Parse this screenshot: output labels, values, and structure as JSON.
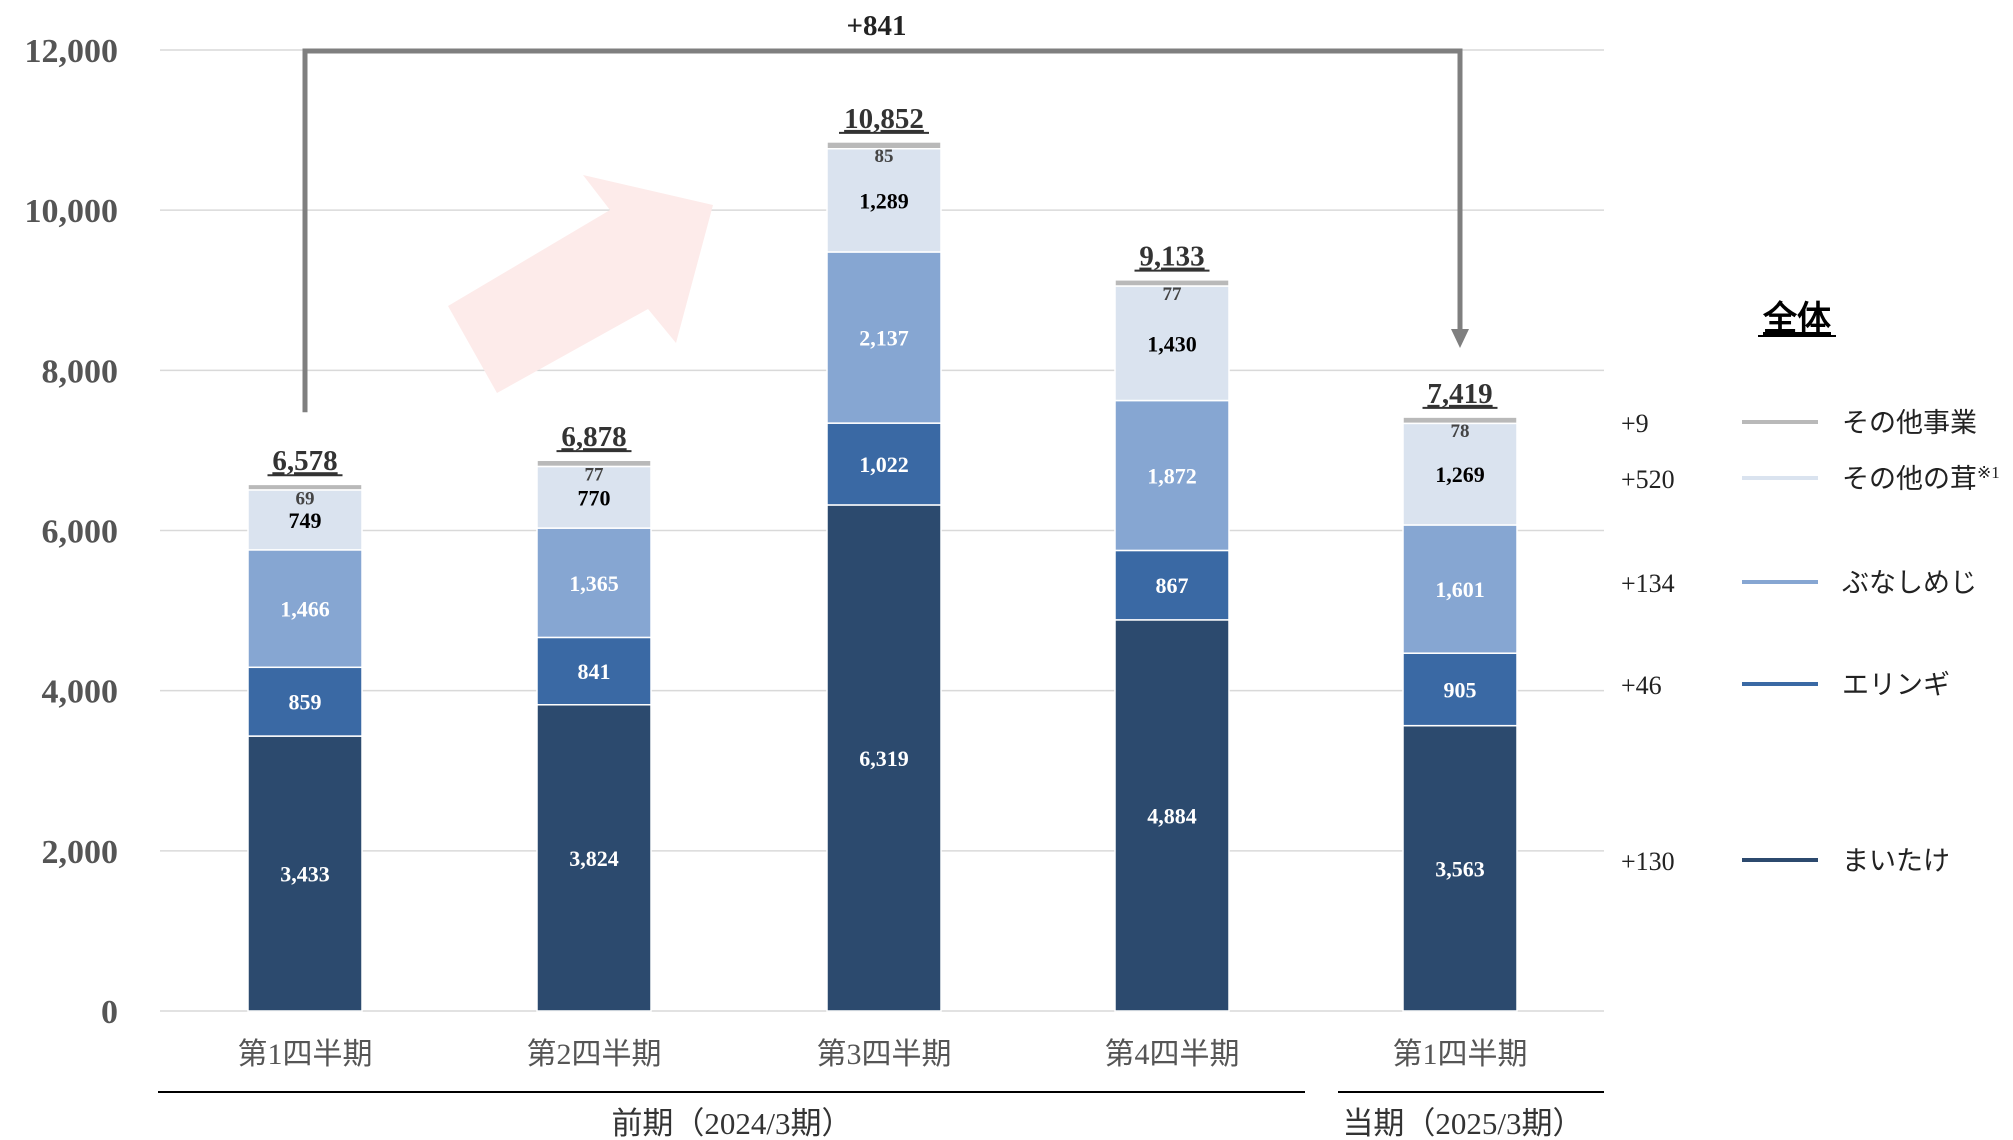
{
  "colors": {
    "maitake": "#2c4a6e",
    "eringi": "#3a69a4",
    "bunashimeji": "#86a6d2",
    "other_mushrooms": "#dae3ef",
    "other_business": "#b9b9b9",
    "grid": "#d9d9d9",
    "axis_text": "#555555",
    "arrow": "#7f7f7f",
    "trend_arrow": "#fdebea"
  },
  "chart_data": {
    "type": "bar",
    "stacked": true,
    "title": "",
    "xlabel": "",
    "ylabel": "",
    "ylim": [
      0,
      12000
    ],
    "yticks": [
      "0",
      "2,000",
      "4,000",
      "6,000",
      "8,000",
      "10,000",
      "12,000"
    ],
    "grid": true,
    "categories": [
      "第1四半期",
      "第2四半期",
      "第3四半期",
      "第4四半期",
      "第1四半期"
    ],
    "period_groups": [
      {
        "label": "前期（2024/3期）",
        "span": [
          0,
          3
        ]
      },
      {
        "label": "当期（2025/3期）",
        "span": [
          4,
          4
        ]
      }
    ],
    "series": [
      {
        "key": "maitake",
        "name": "まいたけ",
        "values": [
          3433,
          3824,
          6319,
          4884,
          3563
        ],
        "labels": [
          "3,433",
          "3,824",
          "6,319",
          "4,884",
          "3,563"
        ],
        "change": "+130"
      },
      {
        "key": "eringi",
        "name": "エリンギ",
        "values": [
          859,
          841,
          1022,
          867,
          905
        ],
        "labels": [
          "859",
          "841",
          "1,022",
          "867",
          "905"
        ],
        "change": "+46"
      },
      {
        "key": "bunashimeji",
        "name": "ぶなしめじ",
        "values": [
          1466,
          1365,
          2137,
          1872,
          1601
        ],
        "labels": [
          "1,466",
          "1,365",
          "2,137",
          "1,872",
          "1,601"
        ],
        "change": "+134"
      },
      {
        "key": "other_mushrooms",
        "name": "その他の茸",
        "name_sup": "※1",
        "values": [
          749,
          770,
          1289,
          1430,
          1269
        ],
        "labels": [
          "749",
          "770",
          "1,289",
          "1,430",
          "1,269"
        ],
        "change": "+520"
      },
      {
        "key": "other_business",
        "name": "その他事業",
        "values": [
          69,
          77,
          85,
          77,
          78
        ],
        "labels": [
          "69",
          "77",
          "85",
          "77",
          "78"
        ],
        "change": "+9"
      }
    ],
    "totals": [
      6578,
      6878,
      10852,
      9133,
      7419
    ],
    "total_labels": [
      "6,578",
      "6,878",
      "10,852",
      "9,133",
      "7,419"
    ],
    "comparison": {
      "label": "+841",
      "from_index": 0,
      "to_index": 4
    },
    "legend_title": "全体",
    "legend_position": "right"
  }
}
